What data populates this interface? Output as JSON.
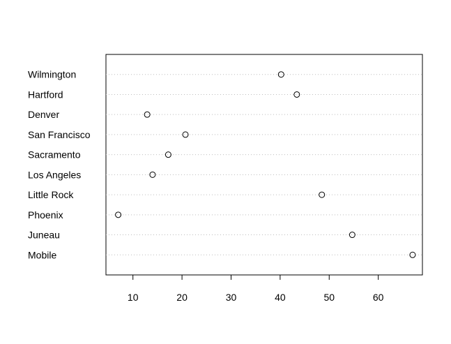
{
  "chart_data": {
    "type": "scatter",
    "subtype": "dotchart",
    "title": "",
    "xlabel": "",
    "ylabel": "",
    "xlim": [
      4.5,
      69
    ],
    "x_ticks": [
      10,
      20,
      30,
      40,
      50,
      60
    ],
    "grid": "dotted horizontal guide lines",
    "categories": [
      "Mobile",
      "Juneau",
      "Phoenix",
      "Little Rock",
      "Los Angeles",
      "Sacramento",
      "San Francisco",
      "Denver",
      "Hartford",
      "Wilmington"
    ],
    "values": [
      67.0,
      54.7,
      7.0,
      48.5,
      14.0,
      17.2,
      20.7,
      12.9,
      43.4,
      40.2
    ],
    "point_style": "open circle",
    "colors": {
      "point_stroke": "#000000",
      "guide_line": "#bdbdbd",
      "axis": "#000000",
      "background": "#ffffff"
    }
  }
}
